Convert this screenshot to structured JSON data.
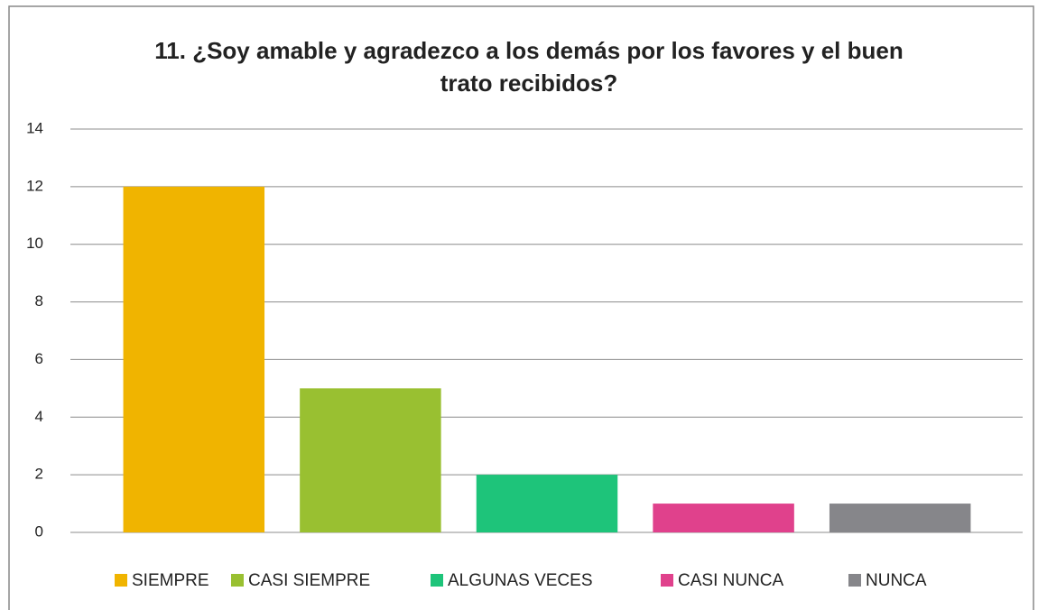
{
  "chart_data": {
    "type": "bar",
    "title": [
      "11. ¿Soy amable y agradezco a los demás por los favores y el buen",
      "trato recibidos?"
    ],
    "categories": [
      "SIEMPRE",
      "CASI SIEMPRE",
      "ALGUNAS VECES",
      "CASI NUNCA",
      "NUNCA"
    ],
    "values": [
      12,
      5,
      2,
      1,
      1
    ],
    "colors": [
      "#f0b400",
      "#99c031",
      "#1ec47a",
      "#e0418c",
      "#86868a"
    ],
    "ylim": [
      0,
      14
    ],
    "yticks": [
      0,
      2,
      4,
      6,
      8,
      10,
      12,
      14
    ],
    "grid": true,
    "legend": "bottom"
  }
}
